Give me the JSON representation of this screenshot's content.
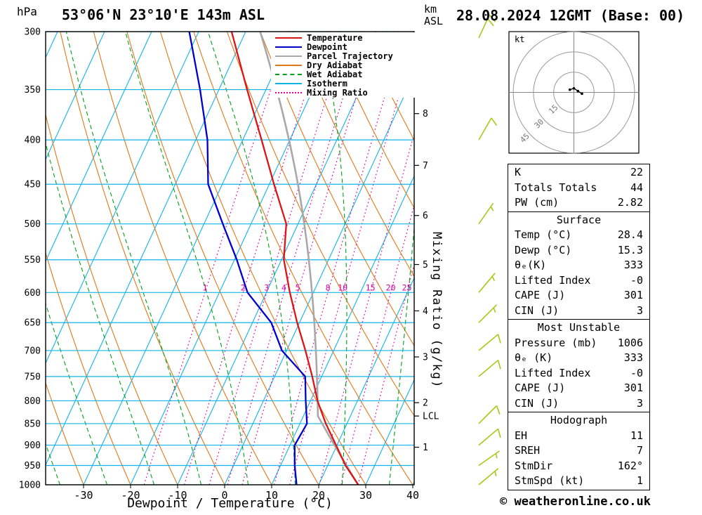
{
  "header": {
    "pressure_unit": "hPa",
    "station": "53°06'N 23°10'E 143m ASL",
    "km_label": "km",
    "asl_label": "ASL",
    "datetime": "28.08.2024 12GMT (Base: 00)"
  },
  "legend": {
    "items": [
      {
        "name": "temperature",
        "label": "Temperature",
        "color": "#dc1414",
        "dash": "solid"
      },
      {
        "name": "dewpoint",
        "label": "Dewpoint",
        "color": "#0000cd",
        "dash": "solid"
      },
      {
        "name": "parcel-trajectory",
        "label": "Parcel Trajectory",
        "color": "#a8a8a8",
        "dash": "solid"
      },
      {
        "name": "dry-adiabat",
        "label": "Dry Adiabat",
        "color": "#e07818",
        "dash": "solid"
      },
      {
        "name": "wet-adiabat",
        "label": "Wet Adiabat",
        "color": "#00a018",
        "dash": "dashed"
      },
      {
        "name": "isotherm",
        "label": "Isotherm",
        "color": "#10b4e8",
        "dash": "solid"
      },
      {
        "name": "mixing-ratio",
        "label": "Mixing Ratio",
        "color": "#e000a8",
        "dash": "dotted"
      }
    ]
  },
  "axes": {
    "x_title": "Dewpoint / Temperature (°C)",
    "x_ticks": [
      -30,
      -20,
      -10,
      0,
      10,
      20,
      30,
      40
    ],
    "pressure_ticks": [
      300,
      350,
      400,
      450,
      500,
      550,
      600,
      650,
      700,
      750,
      800,
      850,
      900,
      950,
      1000
    ],
    "pressure_range": [
      300,
      1000
    ],
    "mixing_ratio_title": "Mixing Ratio (g/kg)",
    "mixing_ratio_lines": [
      1,
      2,
      3,
      4,
      5,
      8,
      10,
      15,
      20,
      25
    ],
    "km_ticks": [
      {
        "km": 1,
        "p": 905
      },
      {
        "km": 2,
        "p": 804
      },
      {
        "km": 3,
        "p": 712
      },
      {
        "km": 4,
        "p": 630
      },
      {
        "km": 5,
        "p": 557
      },
      {
        "km": 6,
        "p": 489
      },
      {
        "km": 7,
        "p": 428
      },
      {
        "km": 8,
        "p": 373
      }
    ],
    "lcl_label": "LCL",
    "lcl_p": 833
  },
  "chart_data": {
    "type": "line",
    "subtype": "skew-t_log-p_sounding",
    "title": "53°06'N 23°10'E 143m ASL",
    "grid": "skewed isotherms / dry adiabats / wet adiabats / mixing ratio",
    "pressure_hPa": [
      1000,
      950,
      900,
      850,
      800,
      750,
      700,
      650,
      600,
      550,
      500,
      450,
      400,
      350,
      300
    ],
    "series": [
      {
        "name": "Temperature (°C)",
        "values": [
          28.4,
          23.8,
          19.8,
          15.5,
          11.5,
          8.0,
          4.0,
          -0.5,
          -5.0,
          -9.5,
          -12.5,
          -19.0,
          -26.0,
          -34.0,
          -43.0
        ]
      },
      {
        "name": "Dewpoint (°C)",
        "values": [
          15.3,
          13.0,
          11.0,
          11.5,
          9.0,
          6.5,
          -1.0,
          -6.0,
          -14.0,
          -19.5,
          -26.0,
          -33.0,
          -37.5,
          -44.0,
          -52.0
        ]
      }
    ],
    "parcel": {
      "start_temp_c": 28.4,
      "start_dewp_c": 15.3,
      "lcl_hPa": 833
    },
    "wind_barbs": [
      {
        "p": 305,
        "dir": 25,
        "spd": 20
      },
      {
        "p": 400,
        "dir": 30,
        "spd": 10
      },
      {
        "p": 500,
        "dir": 35,
        "spd": 5
      },
      {
        "p": 600,
        "dir": 40,
        "spd": 5
      },
      {
        "p": 650,
        "dir": 45,
        "spd": 5
      },
      {
        "p": 700,
        "dir": 50,
        "spd": 10
      },
      {
        "p": 750,
        "dir": 50,
        "spd": 10
      },
      {
        "p": 850,
        "dir": 45,
        "spd": 10
      },
      {
        "p": 900,
        "dir": 50,
        "spd": 10
      },
      {
        "p": 950,
        "dir": 55,
        "spd": 5
      },
      {
        "p": 1000,
        "dir": 50,
        "spd": 5
      }
    ],
    "colors": {
      "wind_barbs": "#a8c818",
      "frame": "#000000",
      "mixing_labels": "#e000a8"
    }
  },
  "hodograph": {
    "unit_label": "kt",
    "rings_kt": [
      15,
      30,
      45
    ],
    "trace_uv_kt": [
      [
        -3,
        2
      ],
      [
        0,
        3
      ],
      [
        3,
        1
      ],
      [
        6,
        -1
      ]
    ]
  },
  "table": {
    "sections": [
      {
        "title": "",
        "rows": [
          {
            "label": "K",
            "value": "22"
          },
          {
            "label": "Totals Totals",
            "value": "44"
          },
          {
            "label": "PW (cm)",
            "value": "2.82"
          }
        ]
      },
      {
        "title": "Surface",
        "rows": [
          {
            "label": "Temp (°C)",
            "value": "28.4"
          },
          {
            "label": "Dewp (°C)",
            "value": "15.3"
          },
          {
            "label": "θₑ(K)",
            "value": "333"
          },
          {
            "label": "Lifted Index",
            "value": "-0"
          },
          {
            "label": "CAPE (J)",
            "value": "301"
          },
          {
            "label": "CIN (J)",
            "value": "3"
          }
        ]
      },
      {
        "title": "Most Unstable",
        "rows": [
          {
            "label": "Pressure (mb)",
            "value": "1006"
          },
          {
            "label": "θₑ (K)",
            "value": "333"
          },
          {
            "label": "Lifted Index",
            "value": "-0"
          },
          {
            "label": "CAPE (J)",
            "value": "301"
          },
          {
            "label": "CIN (J)",
            "value": "3"
          }
        ]
      },
      {
        "title": "Hodograph",
        "rows": [
          {
            "label": "EH",
            "value": "11"
          },
          {
            "label": "SREH",
            "value": "7"
          },
          {
            "label": "StmDir",
            "value": "162°"
          },
          {
            "label": "StmSpd (kt)",
            "value": "1"
          }
        ]
      }
    ]
  },
  "footer": {
    "copyright": "© weatheronline.co.uk"
  }
}
